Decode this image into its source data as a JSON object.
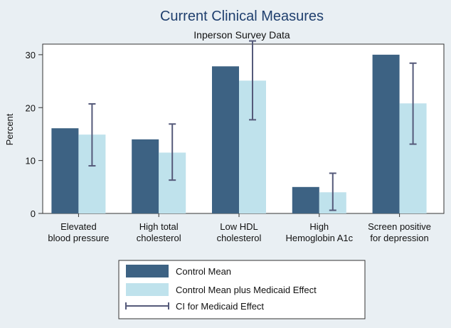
{
  "chart_data": {
    "type": "bar",
    "title": "Current Clinical Measures",
    "subtitle": "Inperson Survey Data",
    "ylabel": "Percent",
    "xlabel": "",
    "ylim": [
      0,
      32
    ],
    "yticks": [
      0,
      10,
      20,
      30
    ],
    "grid": false,
    "legend_position": "bottom",
    "categories": [
      [
        "Elevated",
        "blood pressure"
      ],
      [
        "High total",
        "cholesterol"
      ],
      [
        "Low HDL",
        "cholesterol"
      ],
      [
        "High",
        "Hemoglobin A1c"
      ],
      [
        "Screen positive",
        "for depression"
      ]
    ],
    "series": [
      {
        "name": "Control Mean",
        "color": "#3d6283",
        "values": [
          16.1,
          14.0,
          27.8,
          5.0,
          30.0
        ]
      },
      {
        "name": "Control Mean plus Medicaid Effect",
        "color": "#bfe2ec",
        "values": [
          14.9,
          11.5,
          25.1,
          4.0,
          20.8
        ]
      }
    ],
    "ci": {
      "name": "CI for Medicaid Effect",
      "color": "#555a7a",
      "low": [
        9.0,
        6.3,
        17.7,
        0.6,
        13.1
      ],
      "high": [
        20.7,
        16.9,
        32.6,
        7.6,
        28.4
      ]
    }
  }
}
